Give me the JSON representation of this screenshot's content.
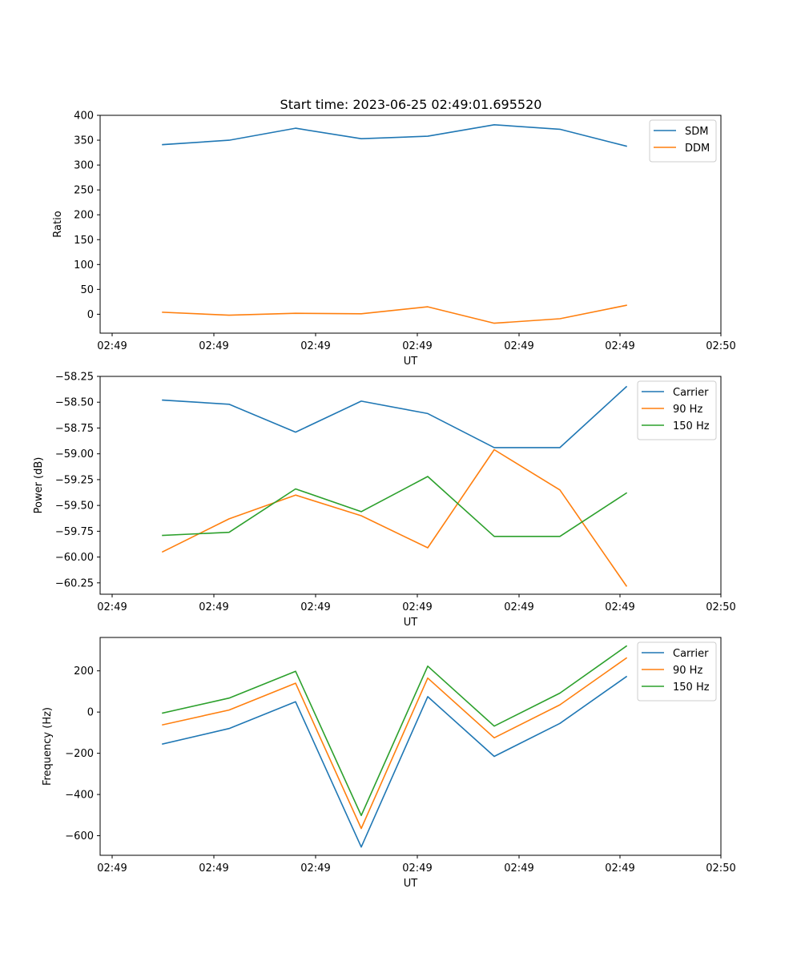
{
  "figure": {
    "title": "Start time: 2023-06-25 02:49:01.695520"
  },
  "chart_data": [
    {
      "type": "line",
      "title": "Start time: 2023-06-25 02:49:01.695520",
      "xlabel": "UT",
      "ylabel": "Ratio",
      "x_tick_labels": [
        "02:49",
        "02:49",
        "02:49",
        "02:49",
        "02:49",
        "02:49",
        "02:50"
      ],
      "y_ticks": [
        0,
        50,
        100,
        150,
        200,
        250,
        300,
        350,
        400
      ],
      "y_tick_labels": [
        "0",
        "50",
        "100",
        "150",
        "200",
        "250",
        "300",
        "350",
        "400"
      ],
      "ylim": [
        -38,
        400
      ],
      "grid": false,
      "legend_position": "top-right",
      "series": [
        {
          "name": "SDM",
          "color": "#1f77b4",
          "values": [
            341,
            350,
            374,
            353,
            358,
            381,
            372,
            338
          ]
        },
        {
          "name": "DDM",
          "color": "#ff7f0e",
          "values": [
            4,
            -2,
            2,
            1,
            15,
            -18,
            -9,
            18
          ]
        }
      ]
    },
    {
      "type": "line",
      "title": "",
      "xlabel": "UT",
      "ylabel": "Power (dB)",
      "x_tick_labels": [
        "02:49",
        "02:49",
        "02:49",
        "02:49",
        "02:49",
        "02:49",
        "02:50"
      ],
      "y_ticks": [
        -58.25,
        -58.5,
        -58.75,
        -59.0,
        -59.25,
        -59.5,
        -59.75,
        -60.0,
        -60.25
      ],
      "y_tick_labels": [
        "−58.25",
        "−58.50",
        "−58.75",
        "−59.00",
        "−59.25",
        "−59.50",
        "−59.75",
        "−60.00",
        "−60.25"
      ],
      "ylim": [
        -60.36,
        -58.25
      ],
      "grid": false,
      "legend_position": "top-right",
      "series": [
        {
          "name": "Carrier",
          "color": "#1f77b4",
          "values": [
            -58.48,
            -58.52,
            -58.79,
            -58.49,
            -58.61,
            -58.94,
            -58.94,
            -58.35
          ]
        },
        {
          "name": "90 Hz",
          "color": "#ff7f0e",
          "values": [
            -59.95,
            -59.63,
            -59.4,
            -59.6,
            -59.91,
            -58.96,
            -59.35,
            -60.28
          ]
        },
        {
          "name": "150 Hz",
          "color": "#2ca02c",
          "values": [
            -59.79,
            -59.76,
            -59.34,
            -59.56,
            -59.22,
            -59.8,
            -59.8,
            -59.38
          ]
        }
      ]
    },
    {
      "type": "line",
      "title": "",
      "xlabel": "UT",
      "ylabel": "Frequency (Hz)",
      "x_tick_labels": [
        "02:49",
        "02:49",
        "02:49",
        "02:49",
        "02:49",
        "02:49",
        "02:50"
      ],
      "y_ticks": [
        200,
        0,
        -200,
        -400,
        -600
      ],
      "y_tick_labels": [
        "200",
        "0",
        "−200",
        "−400",
        "−600"
      ],
      "ylim": [
        -695,
        362
      ],
      "grid": false,
      "legend_position": "top-right",
      "series": [
        {
          "name": "Carrier",
          "color": "#1f77b4",
          "values": [
            -155,
            -80,
            50,
            -655,
            75,
            -215,
            -55,
            172
          ]
        },
        {
          "name": "90 Hz",
          "color": "#ff7f0e",
          "values": [
            -62,
            10,
            140,
            -565,
            165,
            -125,
            35,
            262
          ]
        },
        {
          "name": "150 Hz",
          "color": "#2ca02c",
          "values": [
            -5,
            68,
            198,
            -502,
            223,
            -68,
            92,
            320
          ]
        }
      ]
    }
  ]
}
